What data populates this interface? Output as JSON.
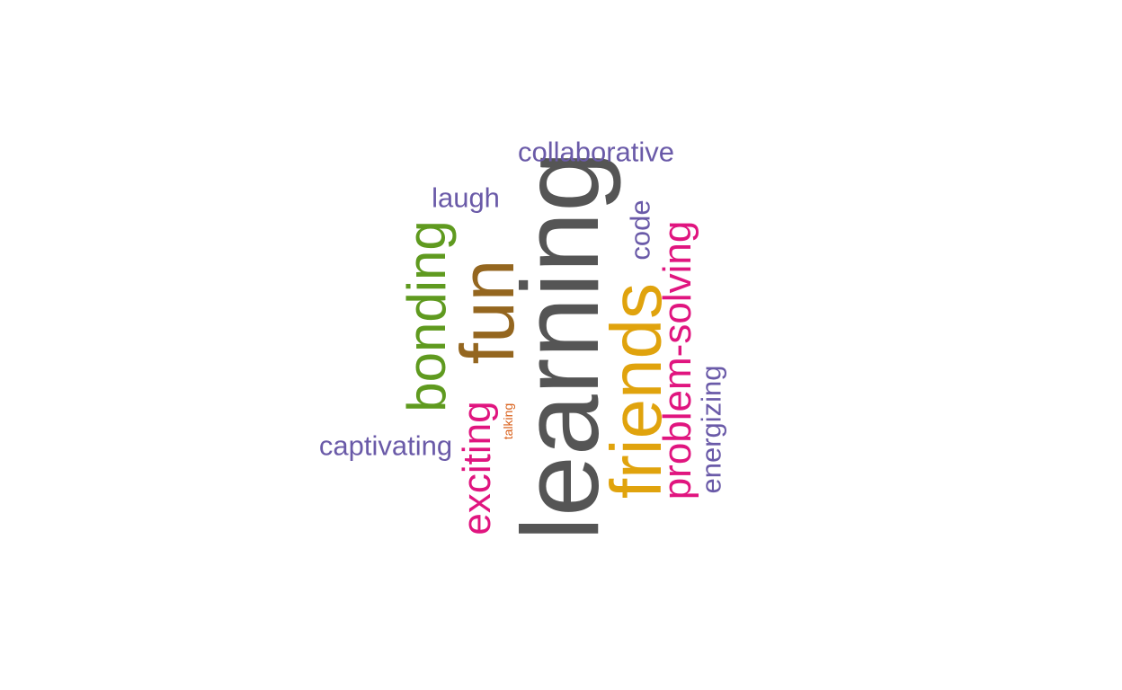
{
  "word_cloud": {
    "words": [
      {
        "text": "learning",
        "color": "#555555",
        "orientation": "vertical"
      },
      {
        "text": "fun",
        "color": "#94661f",
        "orientation": "vertical"
      },
      {
        "text": "friends",
        "color": "#e0a30d",
        "orientation": "vertical"
      },
      {
        "text": "bonding",
        "color": "#5f9a1f",
        "orientation": "vertical"
      },
      {
        "text": "problem-solving",
        "color": "#e0157f",
        "orientation": "vertical"
      },
      {
        "text": "exciting",
        "color": "#e0157f",
        "orientation": "vertical"
      },
      {
        "text": "collaborative",
        "color": "#6a5aa8",
        "orientation": "horizontal"
      },
      {
        "text": "laugh",
        "color": "#6a5aa8",
        "orientation": "horizontal"
      },
      {
        "text": "captivating",
        "color": "#6a5aa8",
        "orientation": "horizontal"
      },
      {
        "text": "energizing",
        "color": "#6a5aa8",
        "orientation": "vertical"
      },
      {
        "text": "code",
        "color": "#6a5aa8",
        "orientation": "vertical"
      },
      {
        "text": "talking",
        "color": "#d9601a",
        "orientation": "vertical"
      }
    ]
  }
}
